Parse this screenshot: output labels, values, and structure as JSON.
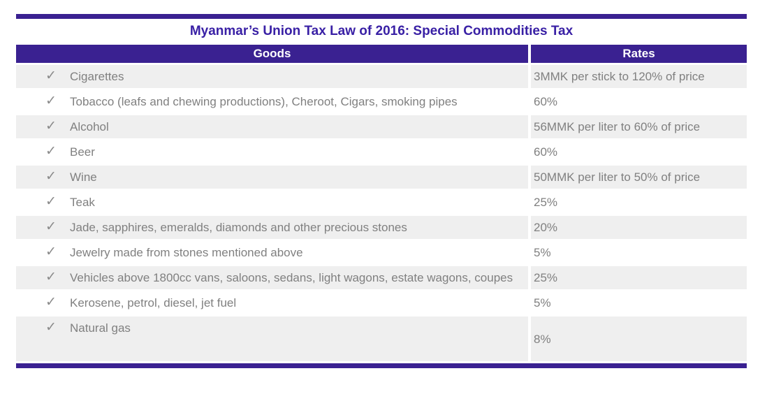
{
  "title": "Myanmar’s Union Tax Law of 2016: Special Commodities Tax",
  "table": {
    "check_icon": "✓",
    "columns": [
      {
        "label": "Goods"
      },
      {
        "label": "Rates"
      }
    ],
    "rows": [
      {
        "goods": "Cigarettes",
        "rate": "3MMK per stick to 120% of price"
      },
      {
        "goods": "Tobacco (leafs and chewing productions), Cheroot, Cigars, smoking pipes",
        "rate": "60%"
      },
      {
        "goods": "Alcohol",
        "rate": "56MMK per liter to 60% of price"
      },
      {
        "goods": "Beer",
        "rate": "60%"
      },
      {
        "goods": "Wine",
        "rate": "50MMK per liter to 50% of price"
      },
      {
        "goods": "Teak",
        "rate": "25%"
      },
      {
        "goods": "Jade, sapphires, emeralds, diamonds and other precious stones",
        "rate": "20%"
      },
      {
        "goods": "Jewelry made from stones mentioned above",
        "rate": "5%"
      },
      {
        "goods": "Vehicles above 1800cc vans, saloons, sedans, light wagons, estate wagons, coupes",
        "rate": "25%"
      },
      {
        "goods": "Kerosene, petrol, diesel, jet fuel",
        "rate": "5%"
      },
      {
        "goods": "Natural gas",
        "rate": "8%"
      }
    ]
  },
  "chart_data": {
    "type": "table",
    "title": "Myanmar’s Union Tax Law of 2016: Special Commodities Tax",
    "columns": [
      "Goods",
      "Rates"
    ],
    "rows": [
      [
        "Cigarettes",
        "3MMK per stick to 120% of price"
      ],
      [
        "Tobacco (leafs and chewing productions), Cheroot, Cigars, smoking pipes",
        "60%"
      ],
      [
        "Alcohol",
        "56MMK per liter to 60% of price"
      ],
      [
        "Beer",
        "60%"
      ],
      [
        "Wine",
        "50MMK per liter to 50% of price"
      ],
      [
        "Teak",
        "25%"
      ],
      [
        "Jade, sapphires, emeralds, diamonds and other precious stones",
        "20%"
      ],
      [
        "Jewelry made from stones mentioned above",
        "5%"
      ],
      [
        "Vehicles above 1800cc vans, saloons, sedans, light wagons, estate wagons, coupes",
        "25%"
      ],
      [
        "Kerosene, petrol, diesel, jet fuel",
        "5%"
      ],
      [
        "Natural gas",
        "8%"
      ]
    ]
  },
  "colors": {
    "bar_purple": "#3A2191",
    "header_purple": "#3A2191",
    "title_purple": "#3920A5",
    "row_stripe": "#EFEFEF",
    "body_text": "#808080",
    "check": "#8A8A8A"
  }
}
